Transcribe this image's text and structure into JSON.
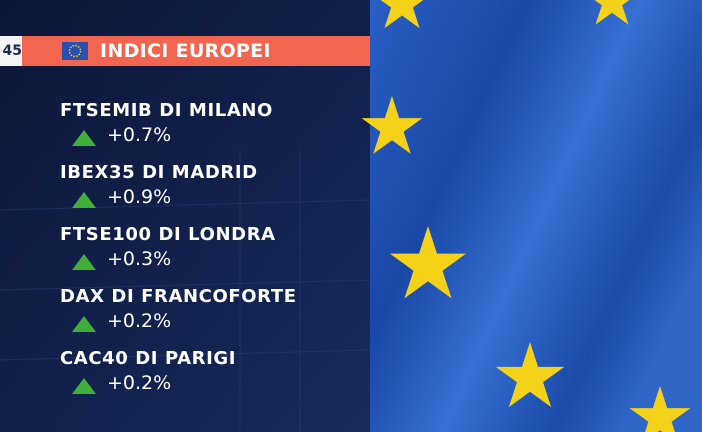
{
  "header": {
    "time": "45",
    "title": "INDICI EUROPEI"
  },
  "indices": [
    {
      "name": "FTSEMIB DI MILANO",
      "change": "+0.7%"
    },
    {
      "name": "IBEX35 DI MADRID",
      "change": "+0.9%"
    },
    {
      "name": "FTSE100 DI LONDRA",
      "change": "+0.3%"
    },
    {
      "name": "DAX DI FRANCOFORTE",
      "change": "+0.2%"
    },
    {
      "name": "CAC40 DI PARIGI",
      "change": "+0.2%"
    }
  ]
}
